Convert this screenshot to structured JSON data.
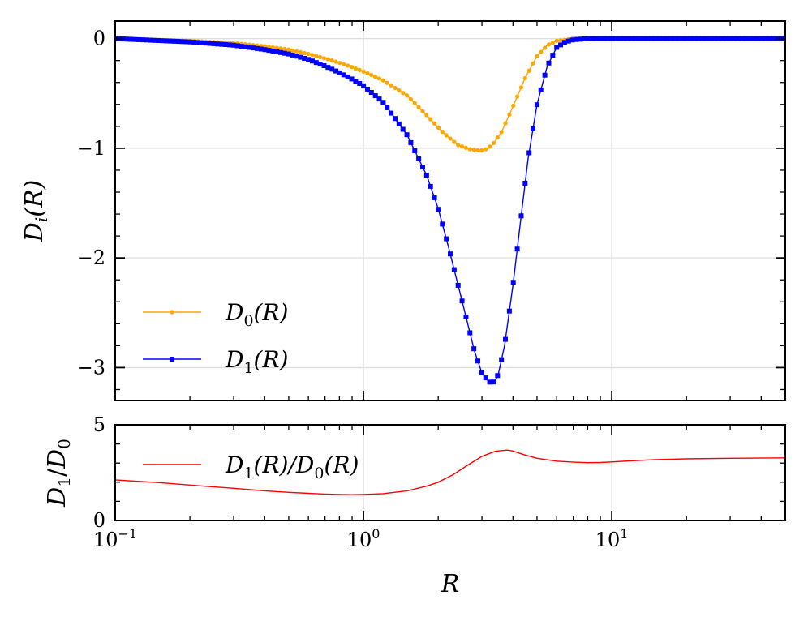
{
  "chart_data": [
    {
      "panel": "top",
      "type": "line",
      "x_scale": "log",
      "xlim": [
        0.1,
        50
      ],
      "ylim": [
        -3.3,
        0.16
      ],
      "ylabel": "Di(R)",
      "yticks": [
        0,
        -1,
        -2,
        -3
      ],
      "ytick_labels": [
        "0",
        "−1",
        "−2",
        "−3"
      ],
      "grid": true,
      "legend_position": "lower-left",
      "series": [
        {
          "name": "D0(R)",
          "legend": {
            "main": "D",
            "sub": "0",
            "rest": "(R)"
          },
          "color": "#ffa500",
          "marker": "circle",
          "x": [
            0.1,
            0.2,
            0.3,
            0.4,
            0.5,
            0.6,
            0.7,
            0.8,
            0.9,
            1.0,
            1.2,
            1.5,
            1.8,
            2.1,
            2.4,
            2.7,
            2.9,
            3.0,
            3.1,
            3.3,
            3.6,
            4.0,
            4.5,
            5.0,
            5.5,
            6.0,
            7.0,
            8.0,
            9.0,
            10,
            15,
            20,
            30,
            50
          ],
          "y": [
            0.0,
            -0.02,
            -0.04,
            -0.07,
            -0.1,
            -0.14,
            -0.18,
            -0.22,
            -0.26,
            -0.3,
            -0.38,
            -0.52,
            -0.7,
            -0.86,
            -0.97,
            -1.01,
            -1.02,
            -1.02,
            -1.01,
            -0.97,
            -0.85,
            -0.62,
            -0.35,
            -0.16,
            -0.06,
            -0.02,
            0.0,
            0.0,
            0.0,
            0.0,
            0.0,
            0.0,
            0.0,
            0.0
          ]
        },
        {
          "name": "D1(R)",
          "legend": {
            "main": "D",
            "sub": "1",
            "rest": "(R)"
          },
          "color": "#0000ff",
          "marker": "square",
          "x": [
            0.1,
            0.2,
            0.3,
            0.4,
            0.5,
            0.6,
            0.7,
            0.8,
            0.9,
            1.0,
            1.2,
            1.5,
            1.8,
            2.0,
            2.2,
            2.5,
            2.8,
            3.0,
            3.2,
            3.3,
            3.4,
            3.5,
            3.7,
            4.0,
            4.3,
            4.6,
            5.0,
            5.5,
            6.0,
            6.5,
            7.0,
            8.0,
            9.0,
            10,
            15,
            20,
            30,
            50
          ],
          "y": [
            0.0,
            -0.03,
            -0.06,
            -0.1,
            -0.14,
            -0.19,
            -0.25,
            -0.31,
            -0.37,
            -0.43,
            -0.58,
            -0.88,
            -1.25,
            -1.55,
            -1.9,
            -2.4,
            -2.85,
            -3.05,
            -3.13,
            -3.14,
            -3.12,
            -3.05,
            -2.8,
            -2.25,
            -1.65,
            -1.1,
            -0.6,
            -0.25,
            -0.08,
            -0.03,
            -0.01,
            0.0,
            0.0,
            0.0,
            0.0,
            0.0,
            0.0,
            0.0
          ]
        }
      ]
    },
    {
      "panel": "bottom",
      "type": "line",
      "x_scale": "log",
      "xlim": [
        0.1,
        50
      ],
      "ylim": [
        0,
        5
      ],
      "xlabel": "R",
      "ylabel": "D1/D0",
      "yticks": [
        0,
        5
      ],
      "ytick_labels": [
        "0",
        "5"
      ],
      "xtick_labels": [
        {
          "base": "10",
          "exp": "−1"
        },
        {
          "base": "10",
          "exp": "0"
        },
        {
          "base": "10",
          "exp": "1"
        }
      ],
      "grid": true,
      "legend_position": "top-left",
      "series": [
        {
          "name": "D1(R)/D0(R)",
          "legend": {
            "main": "D",
            "sub": "1",
            "rest": "(R)/",
            "main2": "D",
            "sub2": "0",
            "rest2": "(R)"
          },
          "color": "#ff0000",
          "x": [
            0.1,
            0.15,
            0.2,
            0.3,
            0.4,
            0.5,
            0.6,
            0.7,
            0.8,
            0.9,
            1.0,
            1.2,
            1.5,
            1.8,
            2.0,
            2.3,
            2.6,
            3.0,
            3.4,
            3.8,
            4.0,
            4.4,
            5.0,
            6.0,
            7.0,
            8.0,
            9.0,
            10,
            12,
            15,
            20,
            30,
            50
          ],
          "y": [
            2.12,
            1.98,
            1.85,
            1.68,
            1.55,
            1.47,
            1.42,
            1.38,
            1.36,
            1.35,
            1.36,
            1.4,
            1.55,
            1.8,
            2.0,
            2.4,
            2.85,
            3.35,
            3.62,
            3.68,
            3.63,
            3.45,
            3.25,
            3.1,
            3.05,
            3.02,
            3.03,
            3.06,
            3.12,
            3.18,
            3.22,
            3.25,
            3.27
          ]
        }
      ]
    }
  ]
}
